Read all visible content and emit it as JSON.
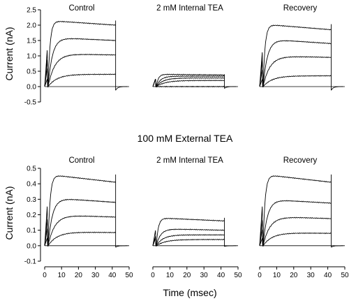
{
  "chart_data": {
    "type": "line",
    "mid_title": "100 mM External TEA",
    "xlabel": "Time (msec)",
    "ylabel": "Current (nA)",
    "x_ticks": [
      0,
      10,
      20,
      30,
      40,
      50
    ],
    "grid": false,
    "rows": [
      {
        "ylim": [
          -0.5,
          2.5
        ],
        "y_ticks": [
          "2.5",
          "2.0",
          "1.5",
          "1.0",
          "0.5",
          "0.0",
          "-0.5"
        ],
        "panels": [
          {
            "title": "Control",
            "step_levels": [
              0.4,
              1.03,
              1.5,
              2.0
            ],
            "peak_levels": [
              0.4,
              1.07,
              1.6,
              2.15
            ],
            "tail": -0.12
          },
          {
            "title": "2 mM Internal TEA",
            "step_levels": [
              0.0,
              0.2,
              0.28,
              0.34,
              0.38
            ],
            "peak_levels": [
              0.0,
              0.2,
              0.28,
              0.34,
              0.4
            ],
            "tail": -0.06
          },
          {
            "title": "Recovery",
            "step_levels": [
              0.35,
              0.95,
              1.4,
              1.85
            ],
            "peak_levels": [
              0.35,
              1.0,
              1.55,
              2.03
            ],
            "tail": -0.12
          }
        ]
      },
      {
        "ylim": [
          -0.1,
          0.5
        ],
        "y_ticks": [
          "0.5",
          "0.4",
          "0.3",
          "0.2",
          "0.1",
          "0.0",
          "-0.1"
        ],
        "panels": [
          {
            "title": "Control",
            "step_levels": [
              0.085,
              0.185,
              0.28,
              0.41
            ],
            "peak_levels": [
              0.09,
              0.2,
              0.31,
              0.46
            ],
            "tail": -0.01
          },
          {
            "title": "2 mM Internal TEA",
            "step_levels": [
              0.04,
              0.07,
              0.1,
              0.16
            ],
            "peak_levels": [
              0.04,
              0.07,
              0.11,
              0.18
            ],
            "tail": -0.005
          },
          {
            "title": "Recovery",
            "step_levels": [
              0.08,
              0.175,
              0.275,
              0.41
            ],
            "peak_levels": [
              0.085,
              0.19,
              0.3,
              0.46
            ],
            "tail": -0.01
          }
        ]
      }
    ]
  }
}
